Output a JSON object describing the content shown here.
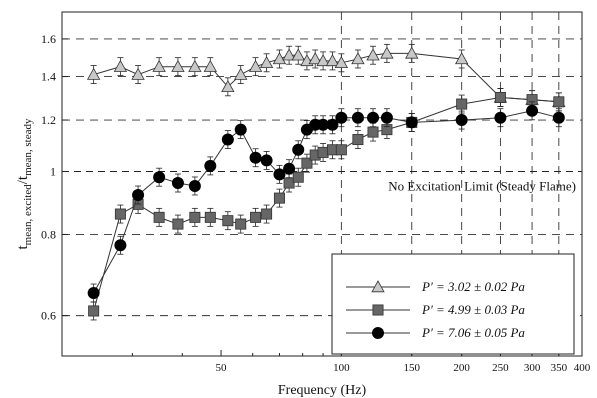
{
  "chart_data": {
    "type": "scatter",
    "title": "",
    "xlabel": "Frequency (Hz)",
    "ylabel_main": "t",
    "ylabel_sub": "mean, excited",
    "ylabel_sep": "/t",
    "ylabel_sub2": "mean, steady",
    "x_scale": "log",
    "y_scale": "log",
    "xlim": [
      20,
      400
    ],
    "ylim": [
      0.52,
      1.76
    ],
    "grid": "dashed at y ticks and x ticks >= 100",
    "x_ticks": [
      50,
      100,
      150,
      200,
      250,
      300,
      350,
      400
    ],
    "x_tick_labels": [
      "50",
      "100",
      "150",
      "200",
      "250",
      "300",
      "350",
      "400"
    ],
    "y_ticks": [
      0.6,
      0.8,
      1,
      1.2,
      1.4,
      1.6
    ],
    "y_tick_labels": [
      "0.6",
      "0.8",
      "1",
      "1.2",
      "1.4",
      "1.6"
    ],
    "annotation": "No Excitation Limit (Steady Flame)",
    "reference_line_y": 1,
    "legend_position": "bottom-right",
    "series": [
      {
        "name": "P′ = 3.02 ± 0.02 Pa",
        "marker": "triangle",
        "color": "#c8c8c8",
        "x": [
          24,
          28,
          31,
          35,
          39,
          43,
          47,
          52,
          56,
          61,
          65,
          70,
          74,
          78,
          82,
          86,
          90,
          95,
          100,
          110,
          120,
          130,
          150,
          200,
          250,
          300,
          350
        ],
        "y": [
          1.41,
          1.45,
          1.41,
          1.45,
          1.45,
          1.45,
          1.45,
          1.35,
          1.41,
          1.45,
          1.47,
          1.49,
          1.51,
          1.51,
          1.48,
          1.49,
          1.48,
          1.48,
          1.47,
          1.49,
          1.51,
          1.52,
          1.52,
          1.49,
          1.3,
          1.29,
          1.28
        ]
      },
      {
        "name": "P′ = 4.99 ± 0.03 Pa",
        "marker": "square",
        "color": "#666666",
        "x": [
          24,
          28,
          31,
          35,
          39,
          43,
          47,
          52,
          56,
          61,
          65,
          70,
          74,
          78,
          82,
          86,
          90,
          95,
          100,
          110,
          120,
          130,
          150,
          200,
          250,
          300,
          350
        ],
        "y": [
          0.61,
          0.86,
          0.89,
          0.85,
          0.83,
          0.85,
          0.85,
          0.84,
          0.83,
          0.85,
          0.86,
          0.91,
          0.96,
          0.98,
          1.03,
          1.06,
          1.07,
          1.08,
          1.08,
          1.12,
          1.15,
          1.16,
          1.19,
          1.27,
          1.3,
          1.29,
          1.28
        ]
      },
      {
        "name": "P′ = 7.06 ± 0.05 Pa",
        "marker": "circle",
        "color": "#000000",
        "x": [
          24,
          28,
          31,
          35,
          39,
          43,
          47,
          52,
          56,
          61,
          65,
          70,
          74,
          78,
          82,
          86,
          90,
          95,
          100,
          110,
          120,
          130,
          150,
          200,
          250,
          300,
          350
        ],
        "y": [
          0.65,
          0.77,
          0.92,
          0.98,
          0.96,
          0.95,
          1.02,
          1.12,
          1.16,
          1.05,
          1.04,
          0.99,
          1.01,
          1.08,
          1.16,
          1.18,
          1.18,
          1.18,
          1.21,
          1.21,
          1.21,
          1.21,
          1.19,
          1.2,
          1.21,
          1.24,
          1.21
        ]
      }
    ]
  }
}
